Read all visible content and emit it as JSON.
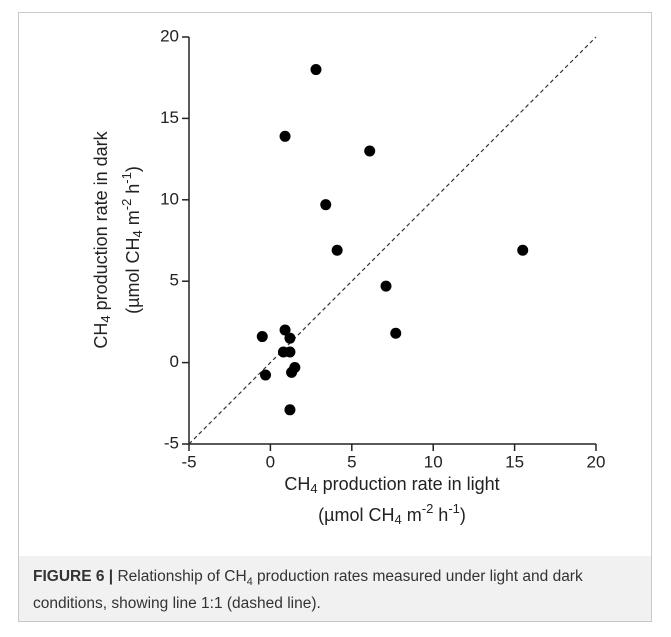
{
  "chart_data": {
    "type": "scatter",
    "x_label": [
      "CH",
      "4",
      " production rate in light"
    ],
    "x_unit": [
      "(µmol CH",
      "4",
      " m",
      "-2",
      " h",
      "-1",
      ")"
    ],
    "y_label": [
      "CH",
      "4",
      " production rate in dark"
    ],
    "y_unit": [
      "(µmol CH",
      "4",
      " m",
      "-2",
      " h",
      "-1",
      ")"
    ],
    "x": [
      2.8,
      0.9,
      6.1,
      3.4,
      4.1,
      15.5,
      7.1,
      7.7,
      -0.5,
      0.9,
      1.2,
      0.8,
      1.2,
      -0.3,
      1.3,
      1.5,
      1.2
    ],
    "y": [
      18.0,
      13.9,
      13.0,
      9.7,
      6.9,
      6.9,
      4.7,
      1.8,
      1.6,
      2.0,
      1.5,
      0.65,
      0.65,
      -0.76,
      -0.6,
      -0.3,
      -2.9
    ],
    "color": "#000000",
    "xlim": [
      -5,
      20
    ],
    "xticks": [
      -5,
      0,
      5,
      10,
      15,
      20
    ],
    "ylim": [
      -5,
      20
    ],
    "yticks": [
      -5,
      0,
      5,
      10,
      15,
      20
    ],
    "diagonal": true
  },
  "caption": [
    "FIGURE 6 |",
    " Relationship of CH",
    "4",
    " production rates measured under light and dark conditions, showing line 1:1 (dashed line)."
  ]
}
